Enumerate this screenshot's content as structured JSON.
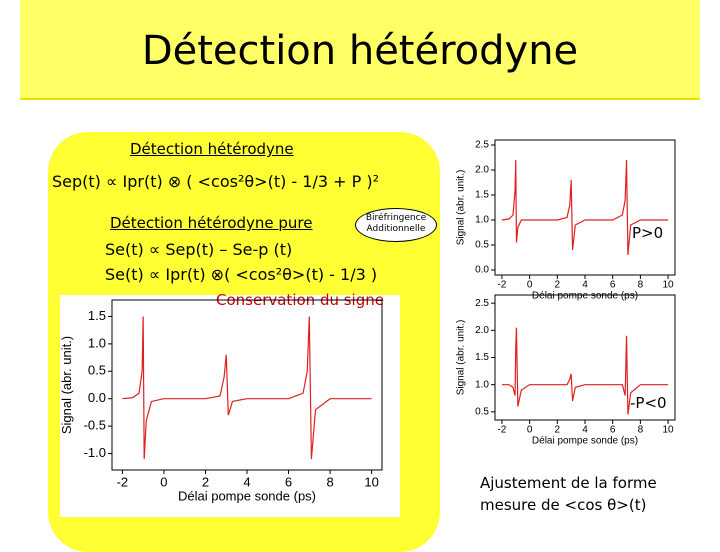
{
  "slide": {
    "title": "Détection hétérodyne",
    "subtitle": "Détection hétérodyne",
    "formula1": "Sep(t) ∝  Ipr(t) ⊗ ( <cos²θ>(t) - 1/3 + P )²",
    "heading2": "Détection hétérodyne pure",
    "bubble": "Biréfringence Additionnelle",
    "formula2": "Se(t) ∝ Sep(t) – Se-p (t)",
    "formula3": "Se(t) ∝ Ipr(t) ⊗( <cos²θ>(t) - 1/3 )",
    "note": "Conservation du signe",
    "label_pos": "P>0",
    "label_neg": "-P<0",
    "fit1": "Ajustement de la forme",
    "fit2": "mesure de <cos θ>(t)"
  },
  "chart_data": [
    {
      "type": "line",
      "ylabel": "Signal (abr. unit.)",
      "xlabel": "Délai pompe sonde (ps)",
      "xlim": [
        -2.5,
        10.5
      ],
      "ylim": [
        -1.3,
        1.8
      ],
      "xticks": [
        -2,
        0,
        2,
        4,
        6,
        8,
        10
      ],
      "yticks": [
        {
          "value": -1.0,
          "label": "-1.0"
        },
        -0.5,
        {
          "value": 0.0,
          "label": "0.0"
        },
        0.5,
        {
          "value": 1.0,
          "label": "1.0"
        },
        1.5
      ],
      "x": [
        -2,
        -1.5,
        -1.2,
        -1.05,
        -1.0,
        -0.95,
        -0.85,
        -0.6,
        0,
        1,
        2,
        2.7,
        2.9,
        3.0,
        3.1,
        3.3,
        4,
        5,
        6,
        6.7,
        6.9,
        7.0,
        7.1,
        7.3,
        8,
        9,
        10
      ],
      "series": [
        {
          "color": "#e02020",
          "values": [
            0,
            0.02,
            0.1,
            0.5,
            1.5,
            -1.1,
            -0.4,
            -0.05,
            0,
            0,
            0,
            0.05,
            0.4,
            0.8,
            -0.3,
            -0.05,
            0,
            0,
            0,
            0.1,
            0.5,
            1.5,
            -1.1,
            -0.2,
            0,
            0,
            0
          ]
        }
      ]
    },
    {
      "type": "line",
      "ylabel": "Signal (abr. unit.)",
      "xlabel": "Délai pompe sonde (ps)",
      "xlim": [
        -2.5,
        10.5
      ],
      "ylim": [
        -0.1,
        2.6
      ],
      "xticks": [
        -2,
        0,
        2,
        4,
        6,
        8,
        10
      ],
      "yticks": [
        {
          "value": 0.0,
          "label": "0.0"
        },
        0.5,
        {
          "value": 1.0,
          "label": "1.0"
        },
        1.5,
        {
          "value": 2.0,
          "label": "2.0"
        },
        2.5
      ],
      "x": [
        -2,
        -1.5,
        -1.2,
        -1.05,
        -1.0,
        -0.95,
        -0.85,
        -0.6,
        0,
        1,
        2,
        2.7,
        2.9,
        3.0,
        3.1,
        3.3,
        4,
        5,
        6,
        6.7,
        6.9,
        7.0,
        7.1,
        7.3,
        8,
        9,
        10
      ],
      "series": [
        {
          "color": "#e02020",
          "values": [
            1.0,
            1.02,
            1.1,
            1.6,
            2.2,
            0.55,
            0.85,
            1.0,
            1.0,
            1.0,
            1.0,
            1.05,
            1.3,
            1.8,
            0.4,
            0.9,
            1.0,
            1.0,
            1.0,
            1.1,
            1.4,
            2.2,
            0.3,
            0.9,
            1.0,
            1.0,
            1.0
          ]
        }
      ]
    },
    {
      "type": "line",
      "ylabel": "Signal (abr. unit.)",
      "xlabel": "Délai pompe sonde (ps)",
      "xlim": [
        -2.5,
        10.5
      ],
      "ylim": [
        0.35,
        2.65
      ],
      "xticks": [
        -2,
        0,
        2,
        4,
        6,
        8,
        10
      ],
      "yticks": [
        0.5,
        {
          "value": 1.0,
          "label": "1.0"
        },
        1.5,
        {
          "value": 2.0,
          "label": "2.0"
        },
        2.5
      ],
      "x": [
        -2,
        -1.5,
        -1.2,
        -1.05,
        -1.0,
        -0.95,
        -0.85,
        -0.6,
        0,
        1,
        2,
        2.7,
        2.9,
        3.0,
        3.1,
        3.3,
        4,
        5,
        6,
        6.7,
        6.9,
        7.0,
        7.1,
        7.3,
        8,
        9,
        10
      ],
      "series": [
        {
          "color": "#e02020",
          "values": [
            1.0,
            1.0,
            0.95,
            0.8,
            1.7,
            2.05,
            0.6,
            0.9,
            1.0,
            1.0,
            1.0,
            1.0,
            1.1,
            1.2,
            0.7,
            0.95,
            1.0,
            1.0,
            1.0,
            1.0,
            0.8,
            1.9,
            0.45,
            0.85,
            1.0,
            1.0,
            1.0
          ]
        }
      ]
    }
  ]
}
